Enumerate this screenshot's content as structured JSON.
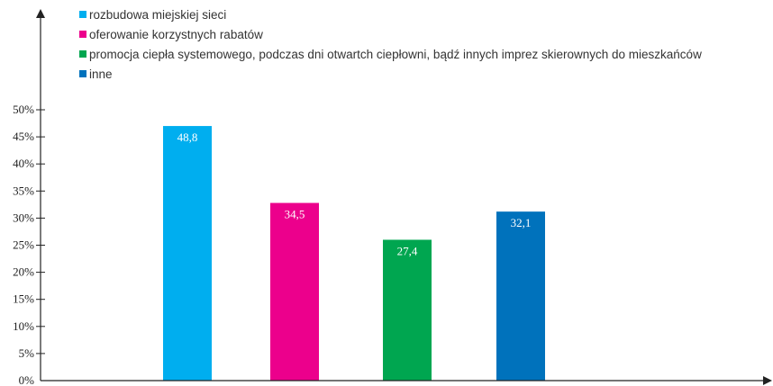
{
  "chart_data": {
    "type": "bar",
    "categories": [
      "rozbudowa miejskiej sieci",
      "oferowanie korzystnych rabatów",
      "promocja ciepła systemowego, podczas dni otwartch ciepłowni, bądź innych imprez skierownych do mieszkańców",
      "inne"
    ],
    "values": [
      48.8,
      34.5,
      27.4,
      32.1
    ],
    "value_labels": [
      "48,8",
      "34,5",
      "27,4",
      "32,1"
    ],
    "bar_heights_percent": [
      47,
      32.8,
      26,
      31.2
    ],
    "colors": [
      "#00aeef",
      "#ec008c",
      "#00a650",
      "#0072bc"
    ],
    "ylim": [
      0,
      50
    ],
    "yticks": [
      0,
      5,
      10,
      15,
      20,
      25,
      30,
      35,
      40,
      45,
      50
    ],
    "ytick_labels": [
      "0%",
      "5%",
      "10%",
      "15%",
      "20%",
      "25%",
      "30%",
      "35%",
      "40%",
      "45%",
      "50%"
    ],
    "legend_position": "top-left",
    "grid": false,
    "axis_color": "#222222"
  }
}
